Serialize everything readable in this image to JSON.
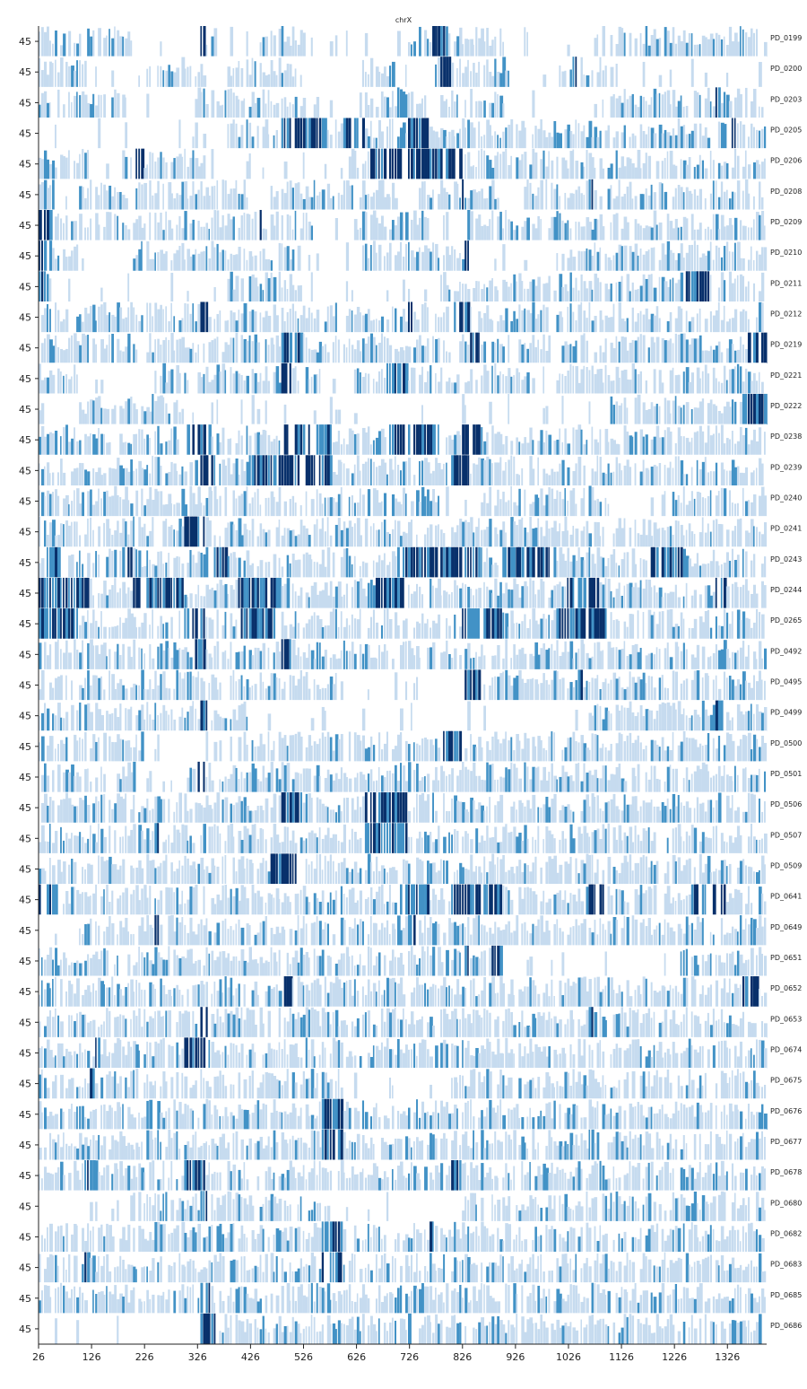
{
  "chart_data": {
    "type": "heatmap",
    "title": "chrX",
    "xlim": [
      26,
      1400
    ],
    "x_ticks": [
      26,
      126,
      226,
      326,
      426,
      526,
      626,
      726,
      826,
      926,
      1026,
      1126,
      1226,
      1326
    ],
    "x_tick_labels": [
      "26",
      "126",
      "226",
      "326",
      "426",
      "526",
      "626",
      "726",
      "826",
      "926",
      "1026",
      "1126",
      "1226",
      "1326"
    ],
    "row_ylabel": "45",
    "grid": false,
    "colormap": "Blues",
    "colors": {
      "light": "#c6dbef",
      "mid": "#4292c6",
      "dark": "#08306b",
      "axis": "#222222"
    },
    "rows": [
      {
        "name": "PD_0199",
        "dense": [
          [
            26,
            200
          ],
          [
            320,
            360
          ],
          [
            440,
            540
          ],
          [
            720,
            900
          ],
          [
            1100,
            1400
          ]
        ],
        "dark": [
          [
            326,
            340
          ],
          [
            480,
            486
          ],
          [
            765,
            790
          ],
          [
            1170,
            1175
          ]
        ]
      },
      {
        "name": "PD_0200",
        "dense": [
          [
            26,
            120
          ],
          [
            230,
            340
          ],
          [
            380,
            520
          ],
          [
            640,
            700
          ],
          [
            760,
            920
          ],
          [
            1000,
            1100
          ]
        ],
        "dark": [
          [
            780,
            800
          ],
          [
            1030,
            1040
          ]
        ]
      },
      {
        "name": "PD_0203",
        "dense": [
          [
            26,
            180
          ],
          [
            320,
            520
          ],
          [
            640,
            760
          ],
          [
            780,
            900
          ],
          [
            1100,
            1400
          ]
        ],
        "dark": [
          [
            1030,
            1036
          ],
          [
            1300,
            1312
          ]
        ]
      },
      {
        "name": "PD_0205",
        "dense": [
          [
            380,
            1400
          ]
        ],
        "dark": [
          [
            480,
            570
          ],
          [
            600,
            640
          ],
          [
            720,
            760
          ],
          [
            1320,
            1340
          ]
        ]
      },
      {
        "name": "PD_0206",
        "dense": [
          [
            26,
            120
          ],
          [
            180,
            340
          ],
          [
            610,
            1400
          ]
        ],
        "dark": [
          [
            200,
            220
          ],
          [
            650,
            820
          ]
        ]
      },
      {
        "name": "PD_0208",
        "dense": [
          [
            26,
            60
          ],
          [
            100,
            420
          ],
          [
            460,
            700
          ],
          [
            740,
            900
          ],
          [
            940,
            1400
          ]
        ],
        "dark": [
          [
            1060,
            1070
          ],
          [
            820,
            826
          ]
        ]
      },
      {
        "name": "PD_0209",
        "dense": [
          [
            26,
            540
          ],
          [
            620,
            760
          ],
          [
            840,
            1400
          ]
        ],
        "dark": [
          [
            26,
            50
          ],
          [
            440,
            446
          ],
          [
            830,
            836
          ]
        ]
      },
      {
        "name": "PD_0210",
        "dense": [
          [
            26,
            100
          ],
          [
            200,
            520
          ],
          [
            640,
            840
          ],
          [
            1000,
            1400
          ]
        ],
        "dark": [
          [
            26,
            50
          ],
          [
            830,
            836
          ]
        ]
      },
      {
        "name": "PD_0211",
        "dense": [
          [
            26,
            50
          ],
          [
            380,
            520
          ],
          [
            780,
            1400
          ]
        ],
        "dark": [
          [
            26,
            40
          ],
          [
            1240,
            1290
          ]
        ]
      },
      {
        "name": "PD_0212",
        "dense": [
          [
            26,
            1400
          ]
        ],
        "dark": [
          [
            330,
            345
          ],
          [
            720,
            730
          ],
          [
            800,
            840
          ]
        ]
      },
      {
        "name": "PD_0219",
        "dense": [
          [
            26,
            1400
          ]
        ],
        "dark": [
          [
            480,
            520
          ],
          [
            840,
            860
          ],
          [
            1360,
            1400
          ]
        ]
      },
      {
        "name": "PD_0221",
        "dense": [
          [
            26,
            100
          ],
          [
            250,
            560
          ],
          [
            620,
            960
          ],
          [
            1000,
            1400
          ]
        ],
        "dark": [
          [
            480,
            500
          ],
          [
            680,
            720
          ]
        ]
      },
      {
        "name": "PD_0222",
        "dense": [
          [
            100,
            300
          ],
          [
            1100,
            1400
          ]
        ],
        "dark": [
          [
            1350,
            1400
          ]
        ]
      },
      {
        "name": "PD_0238",
        "dense": [
          [
            26,
            1400
          ]
        ],
        "dark": [
          [
            300,
            350
          ],
          [
            480,
            580
          ],
          [
            680,
            780
          ],
          [
            820,
            860
          ]
        ]
      },
      {
        "name": "PD_0239",
        "dense": [
          [
            26,
            1400
          ]
        ],
        "dark": [
          [
            330,
            360
          ],
          [
            420,
            580
          ],
          [
            800,
            840
          ]
        ]
      },
      {
        "name": "PD_0240",
        "dense": [
          [
            26,
            780
          ],
          [
            860,
            1100
          ],
          [
            1200,
            1400
          ]
        ],
        "dark": [
          [
            110,
            116
          ],
          [
            1060,
            1066
          ]
        ]
      },
      {
        "name": "PD_0241",
        "dense": [
          [
            26,
            1400
          ]
        ],
        "dark": [
          [
            300,
            340
          ],
          [
            200,
            206
          ]
        ]
      },
      {
        "name": "PD_0243",
        "dense": [
          [
            26,
            1400
          ]
        ],
        "dark": [
          [
            40,
            80
          ],
          [
            180,
            200
          ],
          [
            340,
            380
          ],
          [
            700,
            860
          ],
          [
            900,
            1000
          ],
          [
            1180,
            1240
          ]
        ]
      },
      {
        "name": "PD_0244",
        "dense": [
          [
            26,
            1400
          ]
        ],
        "dark": [
          [
            26,
            120
          ],
          [
            200,
            300
          ],
          [
            400,
            480
          ],
          [
            660,
            720
          ],
          [
            1020,
            1080
          ],
          [
            1300,
            1320
          ]
        ]
      },
      {
        "name": "PD_0265",
        "dense": [
          [
            26,
            1400
          ]
        ],
        "dark": [
          [
            26,
            100
          ],
          [
            300,
            340
          ],
          [
            400,
            480
          ],
          [
            820,
            900
          ],
          [
            1000,
            1100
          ]
        ]
      },
      {
        "name": "PD_0492",
        "dense": [
          [
            26,
            1400
          ]
        ],
        "dark": [
          [
            320,
            340
          ],
          [
            480,
            500
          ]
        ]
      },
      {
        "name": "PD_0495",
        "dense": [
          [
            26,
            600
          ],
          [
            820,
            1400
          ]
        ],
        "dark": [
          [
            820,
            860
          ],
          [
            1040,
            1050
          ]
        ]
      },
      {
        "name": "PD_0499",
        "dense": [
          [
            26,
            420
          ],
          [
            1060,
            1400
          ]
        ],
        "dark": [
          [
            330,
            345
          ],
          [
            1300,
            1320
          ]
        ]
      },
      {
        "name": "PD_0500",
        "dense": [
          [
            26,
            220
          ],
          [
            380,
            1400
          ]
        ],
        "dark": [
          [
            780,
            820
          ]
        ]
      },
      {
        "name": "PD_0501",
        "dense": [
          [
            26,
            200
          ],
          [
            300,
            1400
          ]
        ],
        "dark": [
          [
            200,
            210
          ],
          [
            320,
            340
          ]
        ]
      },
      {
        "name": "PD_0506",
        "dense": [
          [
            26,
            1400
          ]
        ],
        "dark": [
          [
            480,
            520
          ],
          [
            640,
            720
          ]
        ]
      },
      {
        "name": "PD_0507",
        "dense": [
          [
            26,
            1400
          ]
        ],
        "dark": [
          [
            240,
            250
          ],
          [
            640,
            720
          ]
        ]
      },
      {
        "name": "PD_0509",
        "dense": [
          [
            26,
            1400
          ]
        ],
        "dark": [
          [
            460,
            520
          ]
        ]
      },
      {
        "name": "PD_0641",
        "dense": [
          [
            26,
            1400
          ]
        ],
        "dark": [
          [
            26,
            60
          ],
          [
            700,
            760
          ],
          [
            800,
            900
          ],
          [
            1060,
            1090
          ],
          [
            1260,
            1320
          ]
        ]
      },
      {
        "name": "PD_0649",
        "dense": [
          [
            100,
            1400
          ]
        ],
        "dark": [
          [
            240,
            250
          ],
          [
            720,
            740
          ]
        ]
      },
      {
        "name": "PD_0651",
        "dense": [
          [
            26,
            900
          ],
          [
            1200,
            1400
          ]
        ],
        "dark": [
          [
            820,
            840
          ],
          [
            880,
            900
          ]
        ]
      },
      {
        "name": "PD_0652",
        "dense": [
          [
            26,
            1400
          ]
        ],
        "dark": [
          [
            480,
            500
          ],
          [
            1350,
            1380
          ]
        ]
      },
      {
        "name": "PD_0653",
        "dense": [
          [
            26,
            1400
          ]
        ],
        "dark": [
          [
            330,
            345
          ],
          [
            1060,
            1070
          ]
        ]
      },
      {
        "name": "PD_0674",
        "dense": [
          [
            26,
            1400
          ]
        ],
        "dark": [
          [
            130,
            140
          ],
          [
            300,
            340
          ]
        ]
      },
      {
        "name": "PD_0675",
        "dense": [
          [
            26,
            580
          ],
          [
            800,
            1400
          ]
        ],
        "dark": [
          [
            120,
            130
          ]
        ]
      },
      {
        "name": "PD_0676",
        "dense": [
          [
            26,
            1400
          ]
        ],
        "dark": [
          [
            560,
            600
          ]
        ]
      },
      {
        "name": "PD_0677",
        "dense": [
          [
            26,
            1400
          ]
        ],
        "dark": [
          [
            560,
            600
          ],
          [
            1060,
            1070
          ]
        ]
      },
      {
        "name": "PD_0678",
        "dense": [
          [
            26,
            1400
          ]
        ],
        "dark": [
          [
            110,
            130
          ],
          [
            300,
            340
          ],
          [
            800,
            820
          ]
        ]
      },
      {
        "name": "PD_0680",
        "dense": [
          [
            200,
            580
          ],
          [
            820,
            1400
          ]
        ],
        "dark": [
          [
            330,
            345
          ]
        ]
      },
      {
        "name": "PD_0682",
        "dense": [
          [
            26,
            1400
          ]
        ],
        "dark": [
          [
            560,
            600
          ],
          [
            760,
            770
          ]
        ]
      },
      {
        "name": "PD_0683",
        "dense": [
          [
            26,
            1400
          ]
        ],
        "dark": [
          [
            110,
            120
          ],
          [
            560,
            600
          ]
        ]
      },
      {
        "name": "PD_0685",
        "dense": [
          [
            26,
            1400
          ]
        ],
        "dark": [
          [
            330,
            350
          ],
          [
            1060,
            1070
          ]
        ]
      },
      {
        "name": "PD_0686",
        "dense": [
          [
            330,
            1400
          ]
        ],
        "dark": [
          [
            330,
            360
          ],
          [
            720,
            740
          ]
        ]
      }
    ]
  }
}
